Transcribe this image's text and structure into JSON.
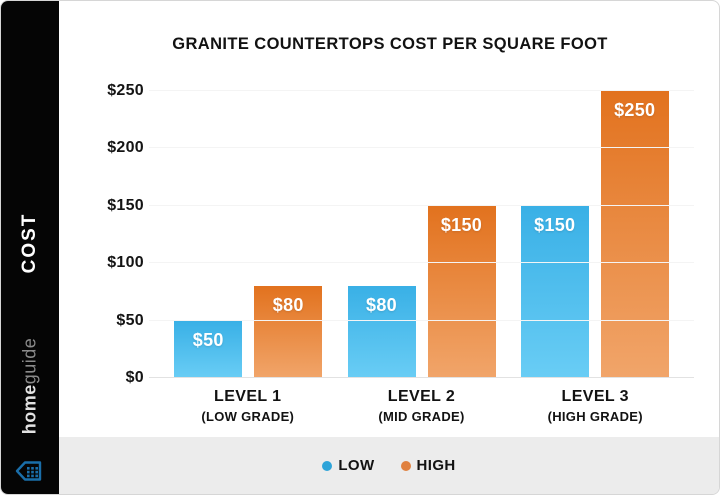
{
  "sidebar": {
    "axis_label": "COST",
    "brand_bold": "home",
    "brand_light": "guide",
    "logo_color": "#1a6ea9"
  },
  "chart_data": {
    "type": "bar",
    "title": "GRANITE COUNTERTOPS COST PER SQUARE FOOT",
    "categories": [
      {
        "label": "LEVEL 1",
        "sublabel": "(LOW GRADE)"
      },
      {
        "label": "LEVEL 2",
        "sublabel": "(MID GRADE)"
      },
      {
        "label": "LEVEL 3",
        "sublabel": "(HIGH GRADE)"
      }
    ],
    "series": [
      {
        "name": "LOW",
        "values": [
          50,
          80,
          150
        ],
        "labels": [
          "$50",
          "$80",
          "$150"
        ],
        "color_top": "#39b0e6",
        "color_bottom": "#69cdf5",
        "legend_color": "#2ea4d9"
      },
      {
        "name": "HIGH",
        "values": [
          80,
          150,
          250
        ],
        "labels": [
          "$80",
          "$150",
          "$250"
        ],
        "color_top": "#e2721e",
        "color_bottom": "#f1a56a",
        "legend_color": "#e08140"
      }
    ],
    "y_axis": {
      "max": 250,
      "ticks": [
        {
          "value": 0,
          "label": "$0"
        },
        {
          "value": 50,
          "label": "$50"
        },
        {
          "value": 100,
          "label": "$100"
        },
        {
          "value": 150,
          "label": "$150"
        },
        {
          "value": 200,
          "label": "$200"
        },
        {
          "value": 250,
          "label": "$250"
        }
      ]
    },
    "grid": true,
    "legend_position": "bottom"
  }
}
